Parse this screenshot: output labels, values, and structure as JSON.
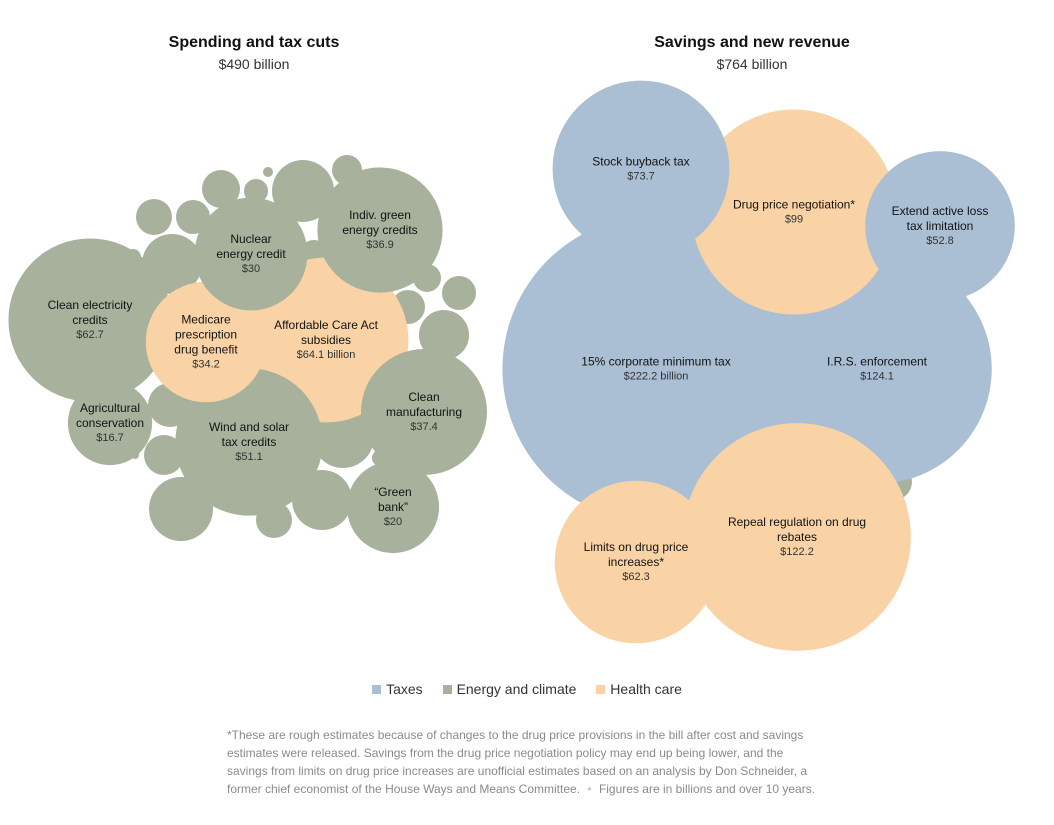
{
  "colors": {
    "Taxes": "#aabfd4",
    "Energy and climate": "#a7b19c",
    "Health care": "#f9d3a5"
  },
  "chart_data": [
    {
      "type": "bubble",
      "title": "Spending and tax cuts",
      "subtitle": "$490 billion",
      "bubbles": [
        {
          "name": "Clean electricity credits",
          "value": 62.7,
          "value_label": "$62.7",
          "category": "Energy and climate"
        },
        {
          "name": "Affordable Care Act subsidies",
          "value": 64.1,
          "value_label": "$64.1 billion",
          "category": "Health care"
        },
        {
          "name": "Wind and solar tax credits",
          "value": 51.1,
          "value_label": "$51.1",
          "category": "Energy and climate"
        },
        {
          "name": "Clean manufacturing",
          "value": 37.4,
          "value_label": "$37.4",
          "category": "Energy and climate"
        },
        {
          "name": "Indiv. green energy credits",
          "value": 36.9,
          "value_label": "$36.9",
          "category": "Energy and climate"
        },
        {
          "name": "Medicare prescription drug benefit",
          "value": 34.2,
          "value_label": "$34.2",
          "category": "Health care"
        },
        {
          "name": "Nuclear energy credit",
          "value": 30,
          "value_label": "$30",
          "category": "Energy and climate"
        },
        {
          "name": "“Green bank”",
          "value": 20,
          "value_label": "$20",
          "category": "Energy and climate"
        },
        {
          "name": "Agricultural conservation",
          "value": 16.7,
          "value_label": "$16.7",
          "category": "Energy and climate"
        }
      ]
    },
    {
      "type": "bubble",
      "title": "Savings and new revenue",
      "subtitle": "$764 billion",
      "bubbles": [
        {
          "name": "15% corporate minimum tax",
          "value": 222.2,
          "value_label": "$222.2 billion",
          "category": "Taxes"
        },
        {
          "name": "I.R.S. enforcement",
          "value": 124.1,
          "value_label": "$124.1",
          "category": "Taxes"
        },
        {
          "name": "Repeal regulation on drug rebates",
          "value": 122.2,
          "value_label": "$122.2",
          "category": "Health care"
        },
        {
          "name": "Drug price negotiation*",
          "value": 99,
          "value_label": "$99",
          "category": "Health care"
        },
        {
          "name": "Stock buyback tax",
          "value": 73.7,
          "value_label": "$73.7",
          "category": "Taxes"
        },
        {
          "name": "Limits on drug price increases*",
          "value": 62.3,
          "value_label": "$62.3",
          "category": "Health care"
        },
        {
          "name": "Extend active loss tax limitation",
          "value": 52.8,
          "value_label": "$52.8",
          "category": "Taxes"
        }
      ]
    }
  ],
  "legend": [
    "Taxes",
    "Energy and climate",
    "Health care"
  ],
  "note": {
    "text": "*These are rough estimates because of changes to the drug price provisions in the bill after cost and savings estimates were released. Savings from the drug price negotiation policy may end up being lower, and the savings from limits on drug price increases are unofficial estimates based on an analysis by Don Schneider, a former chief economist of the House Ways and Means Committee.",
    "separator": "•",
    "units": "Figures are in billions and over 10 years."
  }
}
